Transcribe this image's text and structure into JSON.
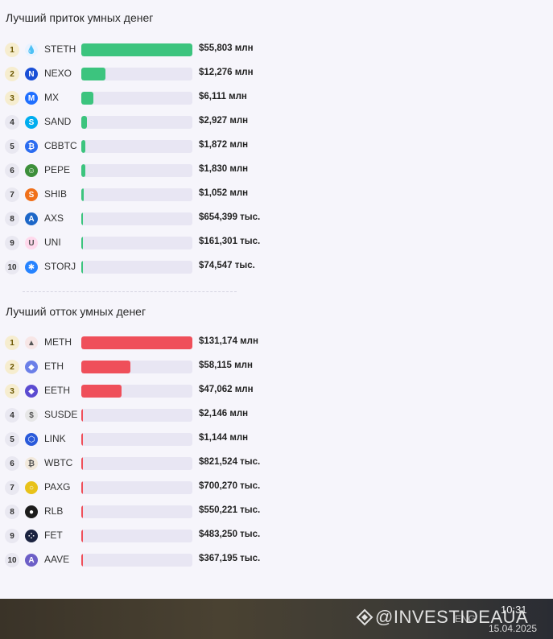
{
  "inflow": {
    "title": "Лучший приток умных денег",
    "items": [
      {
        "rank": "1",
        "ticker": "STETH",
        "amount": "$55,803 млн",
        "value": 55803000,
        "icon": "steth-icon",
        "icon_color": "#e9f3ff",
        "glyph": "💧"
      },
      {
        "rank": "2",
        "ticker": "NEXO",
        "amount": "$12,276 млн",
        "value": 12276000,
        "icon": "nexo-icon",
        "icon_color": "#1a4fd6",
        "glyph": "N"
      },
      {
        "rank": "3",
        "ticker": "MX",
        "amount": "$6,111 млн",
        "value": 6111000,
        "icon": "mx-icon",
        "icon_color": "#1f6fff",
        "glyph": "M"
      },
      {
        "rank": "4",
        "ticker": "SAND",
        "amount": "$2,927 млн",
        "value": 2927000,
        "icon": "sand-icon",
        "icon_color": "#00adef",
        "glyph": "S"
      },
      {
        "rank": "5",
        "ticker": "CBBTC",
        "amount": "$1,872 млн",
        "value": 1872000,
        "icon": "cbbtc-icon",
        "icon_color": "#2b6cf0",
        "glyph": "₿"
      },
      {
        "rank": "6",
        "ticker": "PEPE",
        "amount": "$1,830 млн",
        "value": 1830000,
        "icon": "pepe-icon",
        "icon_color": "#3d8f3a",
        "glyph": "☺"
      },
      {
        "rank": "7",
        "ticker": "SHIB",
        "amount": "$1,052 млн",
        "value": 1052000,
        "icon": "shib-icon",
        "icon_color": "#f0701a",
        "glyph": "S"
      },
      {
        "rank": "8",
        "ticker": "AXS",
        "amount": "$654,399 тыс.",
        "value": 654399,
        "icon": "axs-icon",
        "icon_color": "#1d67c8",
        "glyph": "A"
      },
      {
        "rank": "9",
        "ticker": "UNI",
        "amount": "$161,301 тыс.",
        "value": 161301,
        "icon": "uni-icon",
        "icon_color": "#ffd9ec",
        "glyph": "U"
      },
      {
        "rank": "10",
        "ticker": "STORJ",
        "amount": "$74,547 тыс.",
        "value": 74547,
        "icon": "storj-icon",
        "icon_color": "#2683ff",
        "glyph": "✱"
      }
    ]
  },
  "outflow": {
    "title": "Лучший отток умных денег",
    "items": [
      {
        "rank": "1",
        "ticker": "METH",
        "amount": "$131,174 млн",
        "value": 131174000,
        "icon": "meth-icon",
        "icon_color": "#f7e6e6",
        "glyph": "▲"
      },
      {
        "rank": "2",
        "ticker": "ETH",
        "amount": "$58,115 млн",
        "value": 58115000,
        "icon": "eth-icon",
        "icon_color": "#6b7fe8",
        "glyph": "◆"
      },
      {
        "rank": "3",
        "ticker": "EETH",
        "amount": "$47,062 млн",
        "value": 47062000,
        "icon": "eeth-icon",
        "icon_color": "#5b4bd1",
        "glyph": "◆"
      },
      {
        "rank": "4",
        "ticker": "SUSDE",
        "amount": "$2,146 млн",
        "value": 2146000,
        "icon": "susde-icon",
        "icon_color": "#e7e7e7",
        "glyph": "$"
      },
      {
        "rank": "5",
        "ticker": "LINK",
        "amount": "$1,144 млн",
        "value": 1144000,
        "icon": "link-icon",
        "icon_color": "#2a5ada",
        "glyph": "⬡"
      },
      {
        "rank": "6",
        "ticker": "WBTC",
        "amount": "$821,524 тыс.",
        "value": 821524,
        "icon": "wbtc-icon",
        "icon_color": "#f2e9dc",
        "glyph": "₿"
      },
      {
        "rank": "7",
        "ticker": "PAXG",
        "amount": "$700,270 тыс.",
        "value": 700270,
        "icon": "paxg-icon",
        "icon_color": "#e8c21a",
        "glyph": "○"
      },
      {
        "rank": "8",
        "ticker": "RLB",
        "amount": "$550,221 тыс.",
        "value": 550221,
        "icon": "rlb-icon",
        "icon_color": "#1c1c1c",
        "glyph": "●"
      },
      {
        "rank": "9",
        "ticker": "FET",
        "amount": "$483,250 тыс.",
        "value": 483250,
        "icon": "fet-icon",
        "icon_color": "#1b2340",
        "glyph": "⁘"
      },
      {
        "rank": "10",
        "ticker": "AAVE",
        "amount": "$367,195 тыс.",
        "value": 367195,
        "icon": "aave-icon",
        "icon_color": "#6d5fc7",
        "glyph": "A"
      }
    ]
  },
  "taskbar": {
    "time": "10:31",
    "date": "15.04.2025",
    "lang": "ENG",
    "watermark": "@INVESTIDEAUA"
  }
}
